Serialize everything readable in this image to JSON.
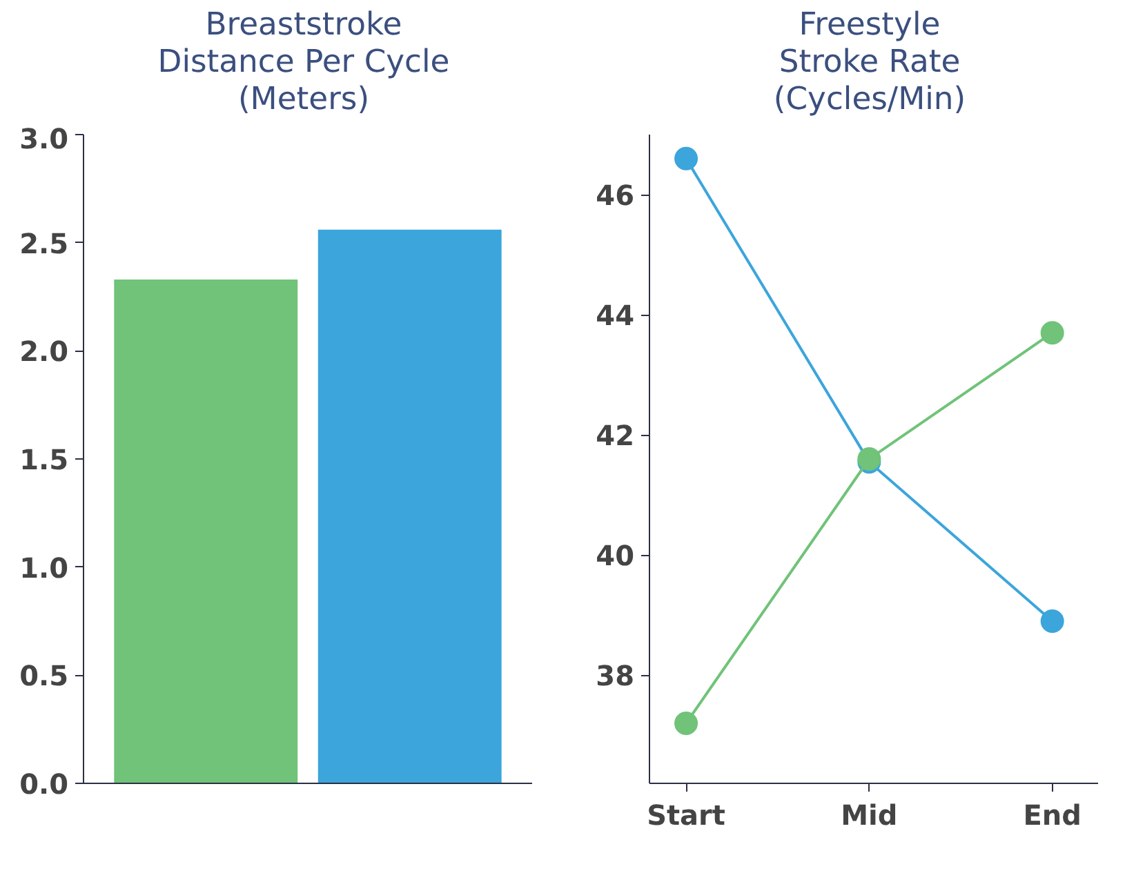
{
  "chart_data": [
    {
      "type": "bar",
      "title": "Breaststroke\nDistance Per Cycle\n(Meters)",
      "categories": [
        null,
        null
      ],
      "values": [
        2.33,
        2.56
      ],
      "colors": [
        "#70c378",
        "#3ca5dc"
      ],
      "ylim": [
        0,
        3
      ],
      "yticks": [
        {
          "value": 0,
          "label": "0.0"
        },
        0.5,
        {
          "value": 1,
          "label": "1.0"
        },
        1.5,
        {
          "value": 2,
          "label": "2.0"
        },
        2.5,
        {
          "value": 3,
          "label": "3.0"
        }
      ],
      "grid": false,
      "tick_labels": "y"
    },
    {
      "type": "line",
      "title": "Freestyle\nStroke Rate\n(Cycles/Min)",
      "categories": [
        "Start",
        "Mid",
        "End"
      ],
      "series": [
        {
          "color": "#3ca5dc",
          "values": [
            46.6,
            41.55,
            38.9
          ]
        },
        {
          "color": "#70c378",
          "values": [
            37.2,
            41.6,
            43.7
          ]
        }
      ],
      "ylim": [
        36.2,
        47
      ],
      "yticks": [
        38,
        40,
        42,
        44,
        46
      ],
      "grid": false,
      "marker": "circle",
      "line_style": "solid"
    }
  ]
}
